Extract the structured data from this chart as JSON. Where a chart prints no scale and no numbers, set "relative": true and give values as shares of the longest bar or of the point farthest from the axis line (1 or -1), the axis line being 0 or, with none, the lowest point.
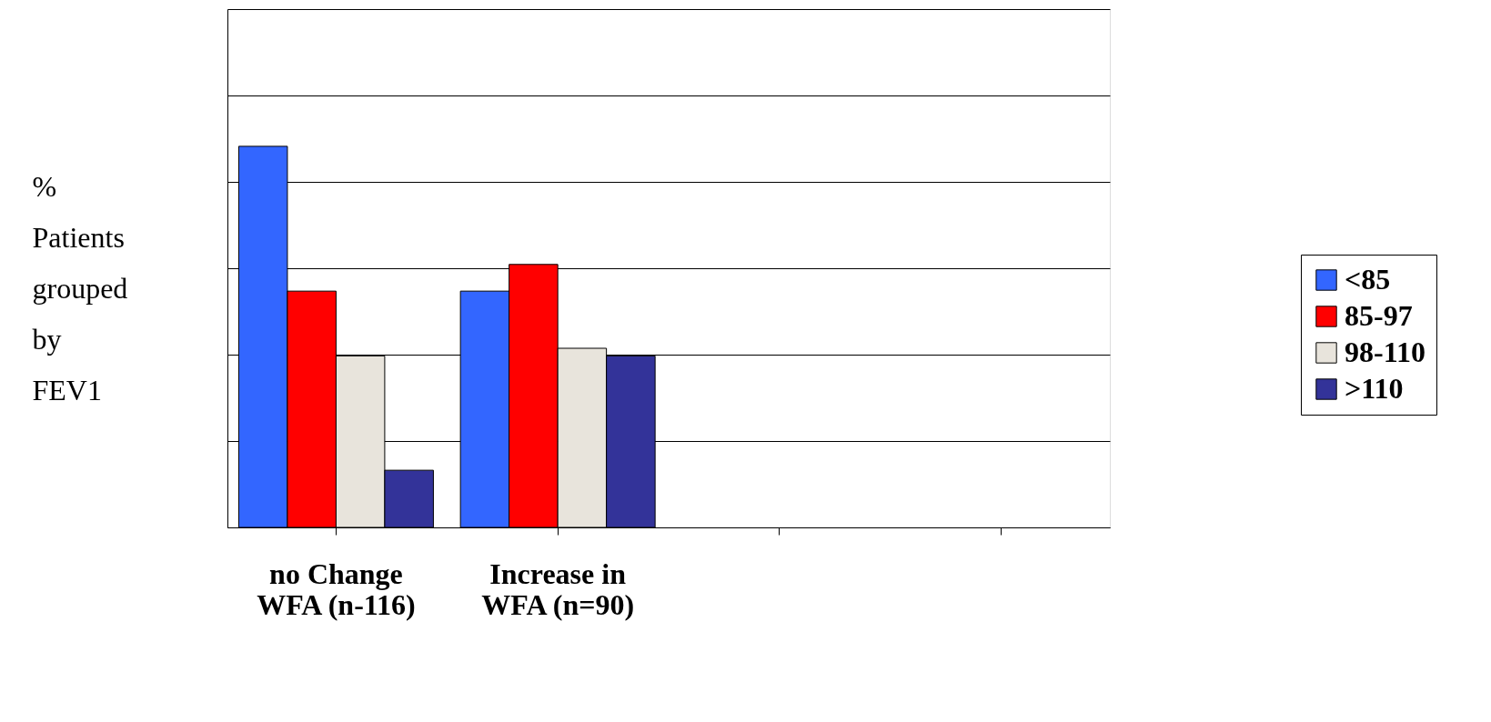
{
  "chart_data": {
    "type": "bar",
    "relative": true,
    "ylabel": "% Patients grouped by FEV1",
    "categories": [
      "no Change WFA (n-116)",
      "Increase in WFA (n=90)",
      null,
      null
    ],
    "series": [
      {
        "name": "<85",
        "color": "#3366ff",
        "values": [
          1,
          0.62,
          null,
          null
        ]
      },
      {
        "name": "85-97",
        "color": "#ff0000",
        "values": [
          0.62,
          0.69,
          null,
          null
        ]
      },
      {
        "name": "98-110",
        "color": "#e8e4dc",
        "values": [
          0.45,
          0.47,
          null,
          null
        ]
      },
      {
        "name": ">110",
        "color": "#333399",
        "values": [
          0.15,
          0.45,
          null,
          null
        ]
      }
    ],
    "grid": "y",
    "legend": "right"
  }
}
